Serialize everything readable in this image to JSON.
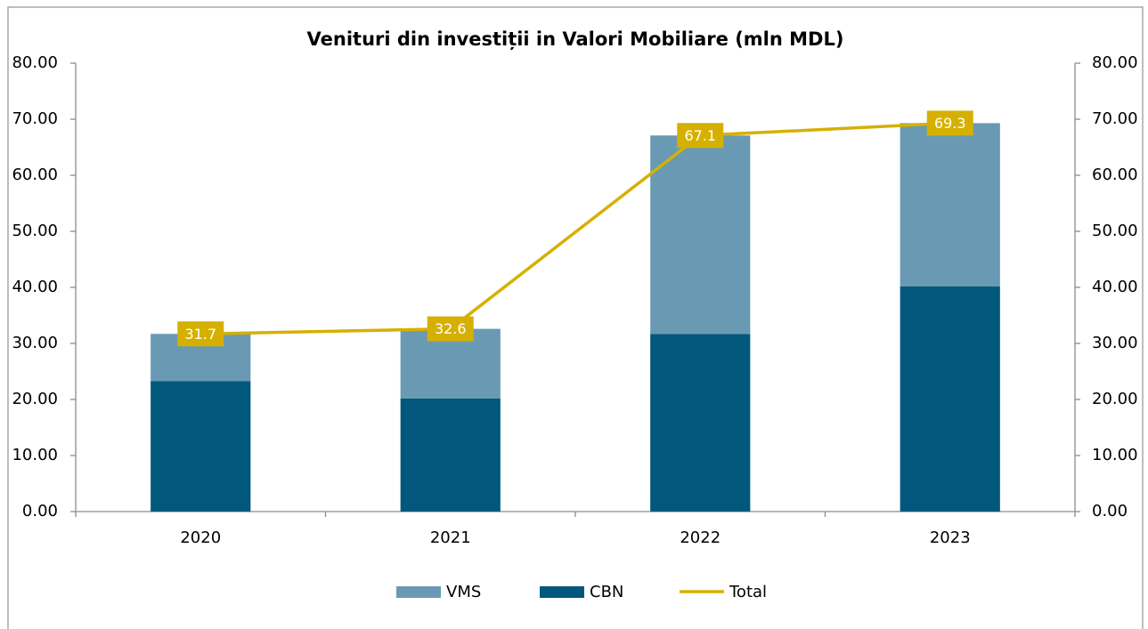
{
  "chart_data": {
    "type": "bar",
    "stacked": true,
    "title": "Venituri din investiții in Valori Mobiliare (mln MDL)",
    "categories": [
      "2020",
      "2021",
      "2022",
      "2023"
    ],
    "series": [
      {
        "name": "VMS",
        "color": "#6a9ab3",
        "values": [
          8.4,
          12.4,
          35.4,
          29.1
        ]
      },
      {
        "name": "CBN",
        "color": "#02587c",
        "values": [
          23.3,
          20.2,
          31.7,
          40.2
        ]
      },
      {
        "name": "Total",
        "type": "line",
        "axis": "y2",
        "color": "#d6b000",
        "values": [
          31.7,
          32.6,
          67.1,
          69.3
        ]
      }
    ],
    "ylim": [
      0,
      80
    ],
    "yticks": [
      {
        "value": 0,
        "label": "0.00"
      },
      {
        "value": 10,
        "label": "10.00"
      },
      {
        "value": 20,
        "label": "20.00"
      },
      {
        "value": 30,
        "label": "30.00"
      },
      {
        "value": 40,
        "label": "40.00"
      },
      {
        "value": 50,
        "label": "50.00"
      },
      {
        "value": 60,
        "label": "60.00"
      },
      {
        "value": 70,
        "label": "70.00"
      },
      {
        "value": 80,
        "label": "80.00"
      }
    ],
    "y2lim": [
      0,
      80
    ],
    "y2ticks": [
      {
        "value": 0,
        "label": "0.00"
      },
      {
        "value": 10,
        "label": "10.00"
      },
      {
        "value": 20,
        "label": "20.00"
      },
      {
        "value": 30,
        "label": "30.00"
      },
      {
        "value": 40,
        "label": "40.00"
      },
      {
        "value": 50,
        "label": "50.00"
      },
      {
        "value": 60,
        "label": "60.00"
      },
      {
        "value": 70,
        "label": "70.00"
      },
      {
        "value": 80,
        "label": "80.00"
      }
    ],
    "legend": "bottom"
  }
}
